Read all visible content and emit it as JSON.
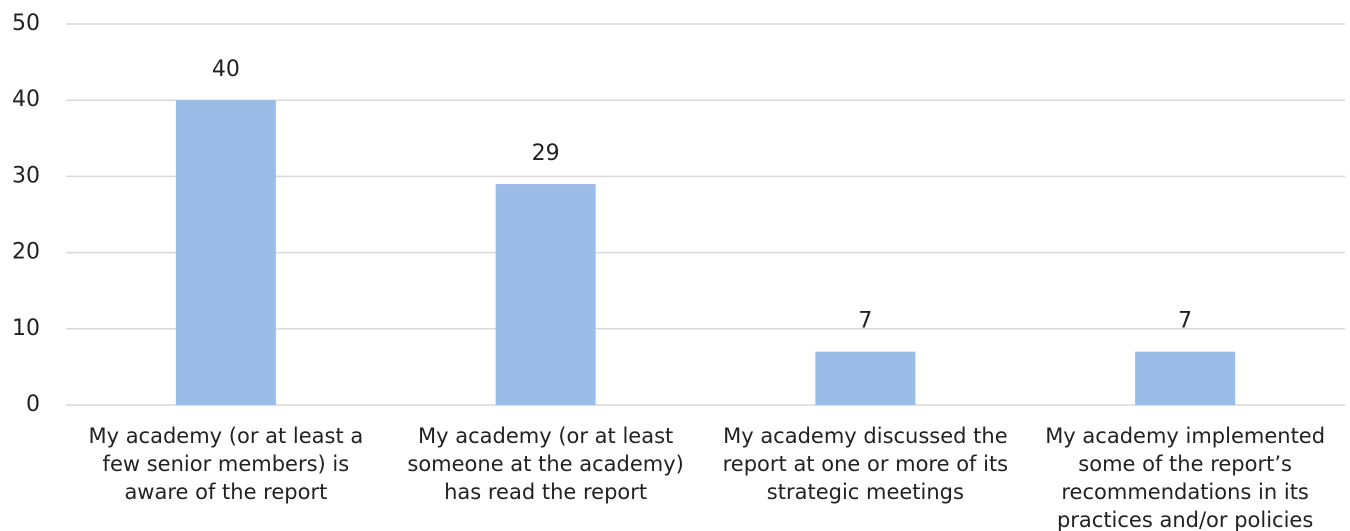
{
  "chart_data": {
    "type": "bar",
    "categories": [
      "My academy (or at least a few senior members) is aware of the report",
      "My academy (or at least someone at the academy) has read the report",
      "My academy discussed the report at one or more of its strategic meetings",
      "My academy implemented some of the report’s recommendations in its practices and/or policies"
    ],
    "values": [
      40,
      29,
      7,
      7
    ],
    "color": "#9bbce6",
    "ylim": [
      0,
      50
    ],
    "yticks": [
      0,
      10,
      20,
      30,
      40,
      50
    ],
    "grid": true
  }
}
